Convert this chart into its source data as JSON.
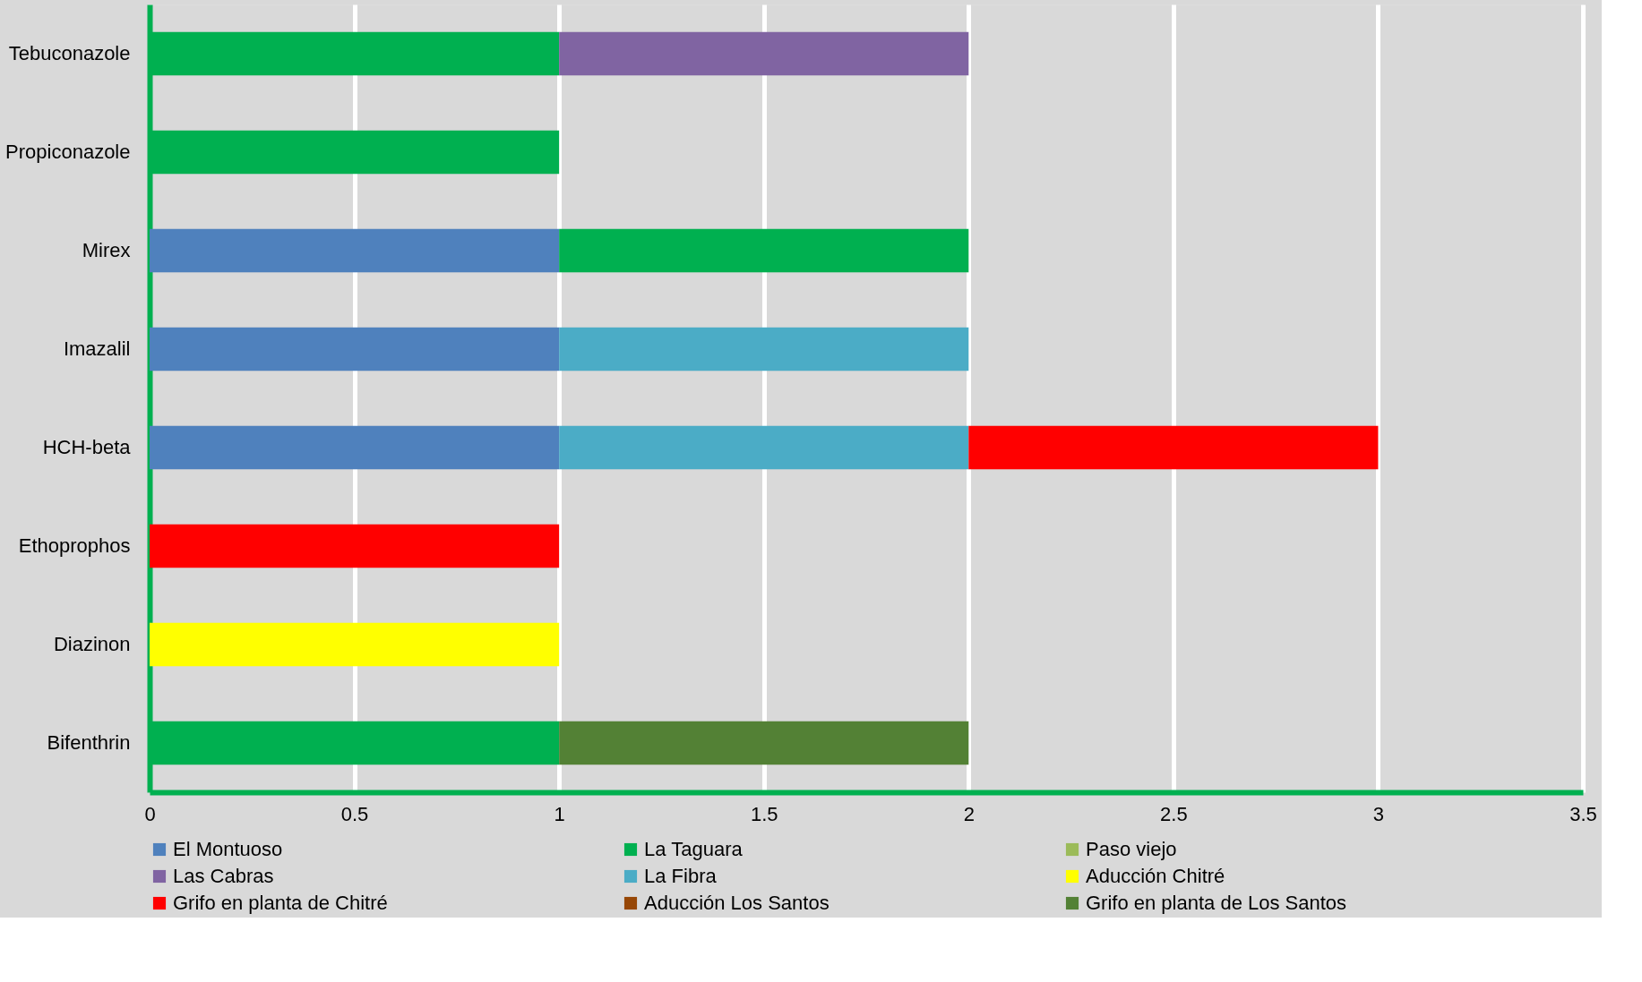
{
  "chart_data": {
    "type": "bar",
    "orientation": "horizontal",
    "stacked": true,
    "categories": [
      "Tebuconazole",
      "Propiconazole",
      "Mirex",
      "Imazalil",
      "HCH-beta",
      "Ethoprophos",
      "Diazinon",
      "Bifenthrin"
    ],
    "series": [
      {
        "name": "El Montuoso",
        "color": "#4f81bd",
        "values": [
          null,
          null,
          1,
          1,
          1,
          null,
          null,
          null
        ]
      },
      {
        "name": "La Taguara",
        "color": "#00b050",
        "values": [
          1,
          1,
          1,
          null,
          null,
          null,
          null,
          1
        ]
      },
      {
        "name": "Paso viejo",
        "color": "#9bbb59",
        "values": [
          null,
          null,
          null,
          null,
          null,
          null,
          null,
          null
        ]
      },
      {
        "name": "Las Cabras",
        "color": "#8064a2",
        "values": [
          1,
          null,
          null,
          null,
          null,
          null,
          null,
          null
        ]
      },
      {
        "name": "La Fibra",
        "color": "#4bacc6",
        "values": [
          null,
          null,
          null,
          1,
          1,
          null,
          null,
          null
        ]
      },
      {
        "name": "Aducción Chitré",
        "color": "#ffff00",
        "values": [
          null,
          null,
          null,
          null,
          null,
          null,
          1,
          null
        ]
      },
      {
        "name": "Grifo en planta de Chitré",
        "color": "#ff0000",
        "values": [
          null,
          null,
          null,
          null,
          1,
          1,
          null,
          null
        ]
      },
      {
        "name": "Aducción Los Santos",
        "color": "#974706",
        "values": [
          null,
          null,
          null,
          null,
          null,
          null,
          null,
          null
        ]
      },
      {
        "name": "Grifo en planta de Los Santos",
        "color": "#538135",
        "values": [
          null,
          null,
          null,
          null,
          null,
          null,
          null,
          1
        ]
      }
    ],
    "xlim": [
      0,
      3.5
    ],
    "xticks": [
      0,
      0.5,
      1,
      1.5,
      2,
      2.5,
      3,
      3.5
    ],
    "grid": "x",
    "legend": "bottom"
  }
}
